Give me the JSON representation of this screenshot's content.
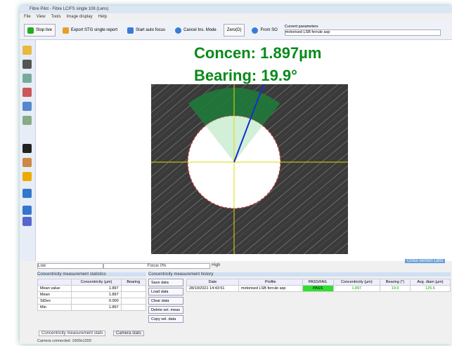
{
  "window": {
    "title": "Fibre Pilot - Fibre LC/FS single 108 (Lens)"
  },
  "menu": [
    "File",
    "View",
    "Tools",
    "Image display",
    "Help"
  ],
  "toolbar": [
    "Stop live",
    "Export STG single report",
    "Start auto focus",
    "Cancel Ins. Mode",
    "Zero(D)",
    "From SO"
  ],
  "toolbar_parameters": {
    "label": "Current parameters",
    "value": "motorised LSB ferrule asp"
  },
  "overlay": {
    "concentricity": "Concen: 1.897µm",
    "bearing": "Bearing: 19.9°"
  },
  "controls": {
    "left": "Low",
    "middle": "Focus 0%",
    "right": "High",
    "status": "Cross-section Lens"
  },
  "left_panel": {
    "title": "Concentricity measurement statistics",
    "headers": [
      "Concentricity (µm)",
      "Bearing"
    ],
    "rows": [
      [
        "Mean value",
        "1.897"
      ],
      [
        "Mean",
        "1.897"
      ],
      [
        "StDev",
        "0.000"
      ],
      [
        "Min",
        "1.897"
      ]
    ],
    "tabs": [
      "Concentricity measurement stats",
      "Camera stats"
    ]
  },
  "buttons": [
    "Save data",
    "Load data",
    "Clear data",
    "Delete sel. meas",
    "Copy sel. data"
  ],
  "results": {
    "title": "Concentricity measurement history",
    "headers": [
      "Date",
      "Profile",
      "PASS/FAIL",
      "Concentricity (µm)",
      "Bearing (°)",
      "Avg. diam (µm)"
    ],
    "rows": [
      [
        "28/10/2021 14:43:51",
        "motorised LSB ferrule asp",
        "PASS",
        "1.897",
        "19.9",
        "125.6"
      ]
    ]
  },
  "status": "Camera connected: 1600x1200"
}
